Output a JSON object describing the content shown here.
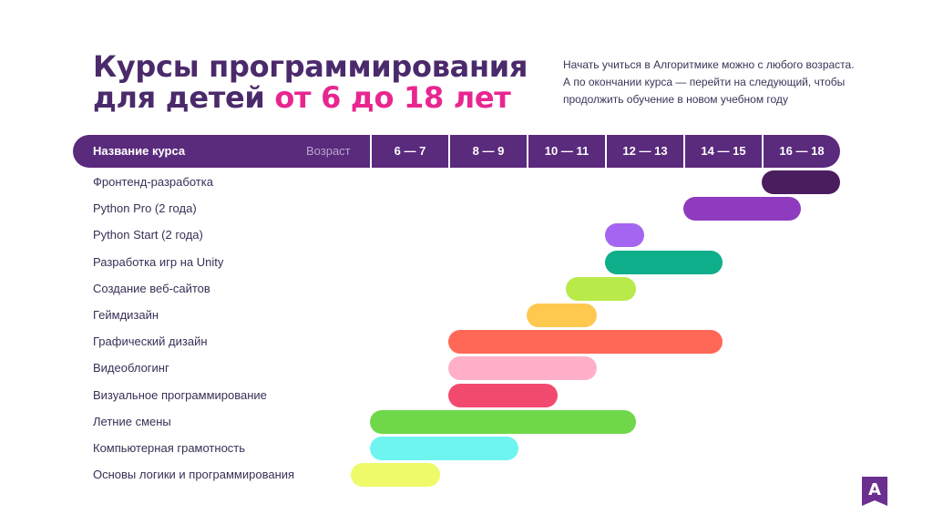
{
  "header": {
    "title_line1": "Курсы программирования",
    "title_line2_prefix": "для детей ",
    "title_line2_accent": "от 6 до 18 лет",
    "subtitle": "Начать учиться в Алгоритмике можно с любого возраста. А по окончании курса — перейти на следующий, чтобы продолжить обучение в новом учебном году"
  },
  "table_header": {
    "name_label": "Название курса",
    "age_label": "Возраст"
  },
  "logo": {
    "icon": "algorithmika-logo-icon",
    "letter": "A",
    "color": "#6b2f8f"
  },
  "chart_data": {
    "type": "gantt",
    "x_categories": [
      "6 — 7",
      "8 — 9",
      "10 — 11",
      "12 — 13",
      "14 — 15",
      "16 — 18"
    ],
    "x_unit": "age (years)",
    "axis_range": [
      6,
      18
    ],
    "series": [
      {
        "name": "Фронтенд-разработка",
        "start": 16,
        "end": 18,
        "color": "#4a1d5e"
      },
      {
        "name": "Python Pro (2 года)",
        "start": 14,
        "end": 17,
        "color": "#8e3bbf"
      },
      {
        "name": "Python Start (2 года)",
        "start": 12,
        "end": 13,
        "color": "#a466f0"
      },
      {
        "name": "Разработка игр на Unity",
        "start": 12,
        "end": 15,
        "color": "#0fae8a"
      },
      {
        "name": "Создание веб-сайтов",
        "start": 11,
        "end": 12.8,
        "color": "#b8ea4a"
      },
      {
        "name": "Геймдизайн",
        "start": 10,
        "end": 11.8,
        "color": "#ffc84f"
      },
      {
        "name": "Графический дизайн",
        "start": 8,
        "end": 15,
        "color": "#ff6857"
      },
      {
        "name": "Видеоблогинг",
        "start": 8,
        "end": 11.8,
        "color": "#ffb0c8"
      },
      {
        "name": "Визуальное программирование",
        "start": 8,
        "end": 10.8,
        "color": "#f24a6e"
      },
      {
        "name": "Летние смены",
        "start": 6,
        "end": 12.8,
        "color": "#6fd84a"
      },
      {
        "name": "Компьютерная грамотность",
        "start": 6,
        "end": 9.8,
        "color": "#6ff5ef"
      },
      {
        "name": "Основы логики и программирования",
        "start": 5.5,
        "end": 7.8,
        "color": "#eefa6a"
      }
    ]
  }
}
